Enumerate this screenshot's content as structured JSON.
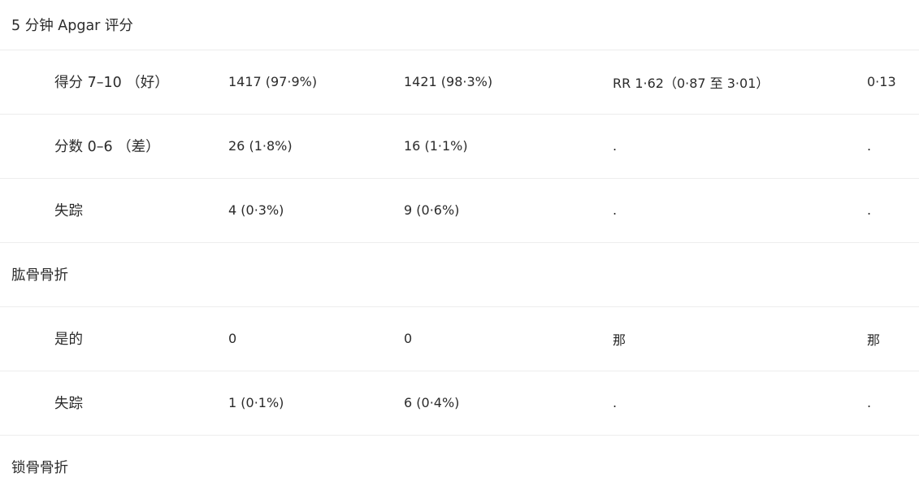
{
  "rows": [
    {
      "type": "section",
      "label": "5 分钟 Apgar 评分"
    },
    {
      "type": "data",
      "label": "得分 7–10 （好）",
      "c1": "1417 (97·9%)",
      "c2": "1421 (98·3%)",
      "c3": "RR 1·62（0·87 至 3·01）",
      "c4": "0·13"
    },
    {
      "type": "data",
      "label": "分数 0–6 （差）",
      "c1": "26 (1·8%)",
      "c2": "16 (1·1%)",
      "c3": ".",
      "c4": "."
    },
    {
      "type": "data",
      "label": "失踪",
      "c1": "4 (0·3%)",
      "c2": "9 (0·6%)",
      "c3": ".",
      "c4": "."
    },
    {
      "type": "section",
      "label": "肱骨骨折"
    },
    {
      "type": "data",
      "label": "是的",
      "c1": "0",
      "c2": "0",
      "c3": "那",
      "c4": "那"
    },
    {
      "type": "data",
      "label": "失踪",
      "c1": "1 (0·1%)",
      "c2": "6 (0·4%)",
      "c3": ".",
      "c4": "."
    },
    {
      "type": "section",
      "label": "锁骨骨折"
    }
  ]
}
